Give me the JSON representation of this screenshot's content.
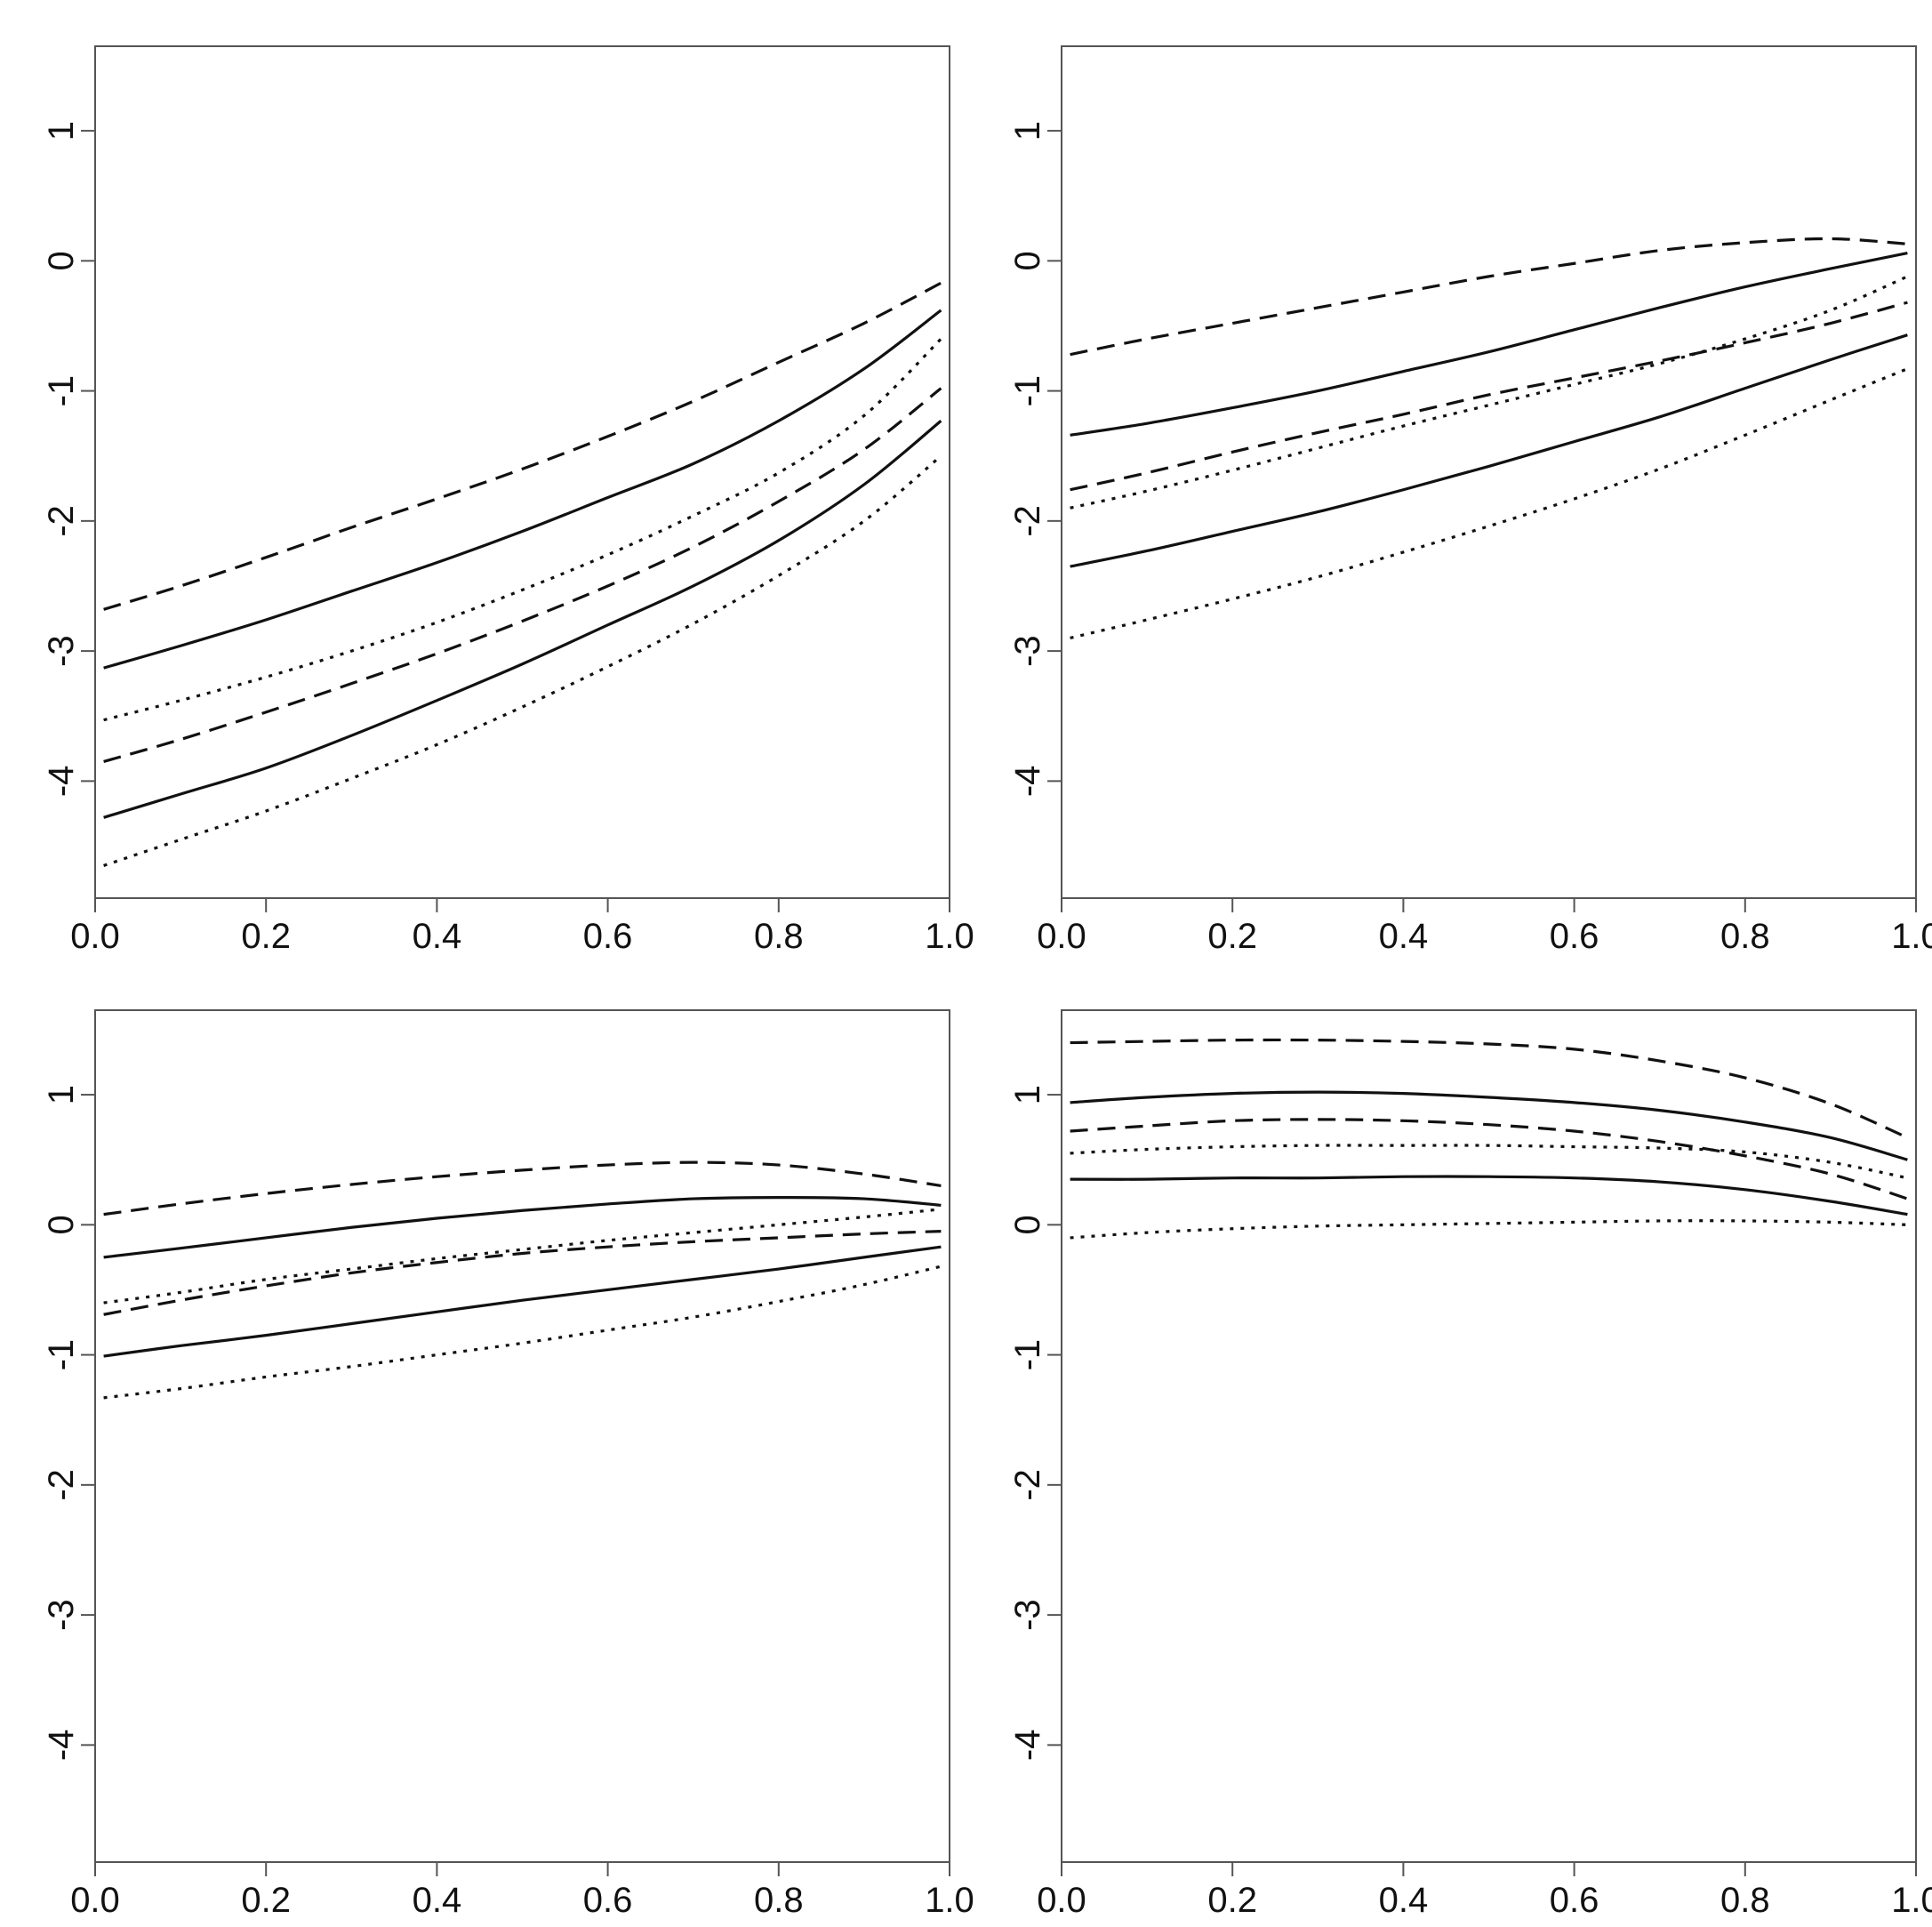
{
  "chart_data": [
    {
      "type": "line",
      "title": "",
      "xlabel": "",
      "ylabel": "",
      "xlim": [
        0,
        1
      ],
      "ylim": [
        -4.9,
        1.65
      ],
      "grid": false,
      "x_ticks": [
        "0.0",
        "0.2",
        "0.4",
        "0.6",
        "0.8",
        "1.0"
      ],
      "y_ticks": [
        "-4",
        "-3",
        "-2",
        "-1",
        "0",
        "1"
      ],
      "x": [
        0.01,
        0.1,
        0.2,
        0.3,
        0.4,
        0.5,
        0.6,
        0.7,
        0.8,
        0.9,
        0.99
      ],
      "series": [
        {
          "style": "dashed",
          "values": [
            -2.68,
            -2.5,
            -2.28,
            -2.05,
            -1.83,
            -1.6,
            -1.35,
            -1.08,
            -0.78,
            -0.48,
            -0.17
          ]
        },
        {
          "style": "solid",
          "values": [
            -3.13,
            -2.96,
            -2.76,
            -2.54,
            -2.32,
            -2.08,
            -1.82,
            -1.56,
            -1.23,
            -0.83,
            -0.38
          ]
        },
        {
          "style": "dotted",
          "values": [
            -3.53,
            -3.38,
            -3.2,
            -3.0,
            -2.78,
            -2.53,
            -2.26,
            -1.96,
            -1.63,
            -1.19,
            -0.6
          ]
        },
        {
          "style": "dashed",
          "values": [
            -3.85,
            -3.68,
            -3.47,
            -3.25,
            -3.02,
            -2.77,
            -2.5,
            -2.2,
            -1.85,
            -1.45,
            -0.98
          ]
        },
        {
          "style": "solid",
          "values": [
            -4.28,
            -4.1,
            -3.9,
            -3.65,
            -3.38,
            -3.1,
            -2.8,
            -2.5,
            -2.15,
            -1.72,
            -1.23
          ]
        },
        {
          "style": "dotted",
          "values": [
            -4.65,
            -4.45,
            -4.23,
            -3.98,
            -3.72,
            -3.43,
            -3.12,
            -2.79,
            -2.42,
            -2.0,
            -1.5
          ]
        }
      ]
    },
    {
      "type": "line",
      "title": "",
      "xlabel": "",
      "ylabel": "",
      "xlim": [
        0,
        1
      ],
      "ylim": [
        -4.9,
        1.65
      ],
      "grid": false,
      "x_ticks": [
        "0.0",
        "0.2",
        "0.4",
        "0.6",
        "0.8",
        "1.0"
      ],
      "y_ticks": [
        "-4",
        "-3",
        "-2",
        "-1",
        "0",
        "1"
      ],
      "x": [
        0.01,
        0.1,
        0.2,
        0.3,
        0.4,
        0.5,
        0.6,
        0.7,
        0.8,
        0.9,
        0.99
      ],
      "series": [
        {
          "style": "dashed",
          "values": [
            -0.72,
            -0.6,
            -0.48,
            -0.36,
            -0.24,
            -0.12,
            -0.02,
            0.08,
            0.14,
            0.17,
            0.13
          ]
        },
        {
          "style": "solid",
          "values": [
            -1.34,
            -1.25,
            -1.13,
            -1.0,
            -0.85,
            -0.7,
            -0.53,
            -0.36,
            -0.2,
            -0.06,
            0.06
          ]
        },
        {
          "style": "dashed",
          "values": [
            -1.76,
            -1.63,
            -1.47,
            -1.32,
            -1.18,
            -1.03,
            -0.9,
            -0.77,
            -0.63,
            -0.48,
            -0.32
          ]
        },
        {
          "style": "dotted",
          "values": [
            -1.9,
            -1.77,
            -1.61,
            -1.44,
            -1.27,
            -1.11,
            -0.95,
            -0.79,
            -0.6,
            -0.38,
            -0.12
          ]
        },
        {
          "style": "solid",
          "values": [
            -2.35,
            -2.23,
            -2.08,
            -1.93,
            -1.76,
            -1.58,
            -1.39,
            -1.2,
            -0.98,
            -0.76,
            -0.57
          ]
        },
        {
          "style": "dotted",
          "values": [
            -2.9,
            -2.76,
            -2.6,
            -2.43,
            -2.24,
            -2.04,
            -1.83,
            -1.6,
            -1.34,
            -1.07,
            -0.83
          ]
        }
      ]
    },
    {
      "type": "line",
      "title": "",
      "xlabel": "",
      "ylabel": "",
      "xlim": [
        0,
        1
      ],
      "ylim": [
        -4.9,
        1.65
      ],
      "grid": false,
      "x_ticks": [
        "0.0",
        "0.2",
        "0.4",
        "0.6",
        "0.8",
        "1.0"
      ],
      "y_ticks": [
        "-4",
        "-3",
        "-2",
        "-1",
        "0",
        "1"
      ],
      "x": [
        0.01,
        0.1,
        0.2,
        0.3,
        0.4,
        0.5,
        0.6,
        0.7,
        0.8,
        0.9,
        0.99
      ],
      "series": [
        {
          "style": "dashed",
          "values": [
            0.08,
            0.16,
            0.24,
            0.31,
            0.37,
            0.42,
            0.46,
            0.48,
            0.46,
            0.39,
            0.3
          ]
        },
        {
          "style": "solid",
          "values": [
            -0.25,
            -0.18,
            -0.1,
            -0.02,
            0.05,
            0.11,
            0.16,
            0.2,
            0.21,
            0.2,
            0.15
          ]
        },
        {
          "style": "dotted",
          "values": [
            -0.6,
            -0.52,
            -0.42,
            -0.34,
            -0.26,
            -0.19,
            -0.12,
            -0.06,
            0.0,
            0.06,
            0.12
          ]
        },
        {
          "style": "dashed",
          "values": [
            -0.69,
            -0.58,
            -0.47,
            -0.37,
            -0.29,
            -0.22,
            -0.17,
            -0.13,
            -0.1,
            -0.07,
            -0.05
          ]
        },
        {
          "style": "solid",
          "values": [
            -1.01,
            -0.93,
            -0.85,
            -0.76,
            -0.67,
            -0.58,
            -0.5,
            -0.42,
            -0.34,
            -0.25,
            -0.17
          ]
        },
        {
          "style": "dotted",
          "values": [
            -1.33,
            -1.26,
            -1.17,
            -1.09,
            -1.0,
            -0.91,
            -0.81,
            -0.71,
            -0.59,
            -0.46,
            -0.32
          ]
        }
      ]
    },
    {
      "type": "line",
      "title": "",
      "xlabel": "",
      "ylabel": "",
      "xlim": [
        0,
        1
      ],
      "ylim": [
        -4.9,
        1.65
      ],
      "grid": false,
      "x_ticks": [
        "0.0",
        "0.2",
        "0.4",
        "0.6",
        "0.8",
        "1.0"
      ],
      "y_ticks": [
        "-4",
        "-3",
        "-2",
        "-1",
        "0",
        "1"
      ],
      "x": [
        0.01,
        0.1,
        0.2,
        0.3,
        0.4,
        0.5,
        0.6,
        0.7,
        0.8,
        0.9,
        0.99
      ],
      "series": [
        {
          "style": "dashed",
          "values": [
            1.4,
            1.41,
            1.42,
            1.42,
            1.41,
            1.39,
            1.35,
            1.26,
            1.13,
            0.93,
            0.67
          ]
        },
        {
          "style": "solid",
          "values": [
            0.94,
            0.98,
            1.01,
            1.02,
            1.01,
            0.98,
            0.94,
            0.88,
            0.79,
            0.67,
            0.5
          ]
        },
        {
          "style": "dashed",
          "values": [
            0.72,
            0.76,
            0.8,
            0.81,
            0.8,
            0.77,
            0.72,
            0.64,
            0.53,
            0.39,
            0.2
          ]
        },
        {
          "style": "dotted",
          "values": [
            0.55,
            0.58,
            0.6,
            0.61,
            0.61,
            0.61,
            0.6,
            0.59,
            0.56,
            0.48,
            0.36
          ]
        },
        {
          "style": "solid",
          "values": [
            0.35,
            0.35,
            0.36,
            0.36,
            0.37,
            0.37,
            0.36,
            0.33,
            0.27,
            0.18,
            0.08
          ]
        },
        {
          "style": "dotted",
          "values": [
            -0.1,
            -0.06,
            -0.03,
            -0.01,
            0.0,
            0.01,
            0.02,
            0.03,
            0.03,
            0.02,
            0.0
          ]
        }
      ]
    }
  ],
  "style": {
    "line_color": "#111111",
    "axis_color": "#555555",
    "text_color": "#111111"
  }
}
